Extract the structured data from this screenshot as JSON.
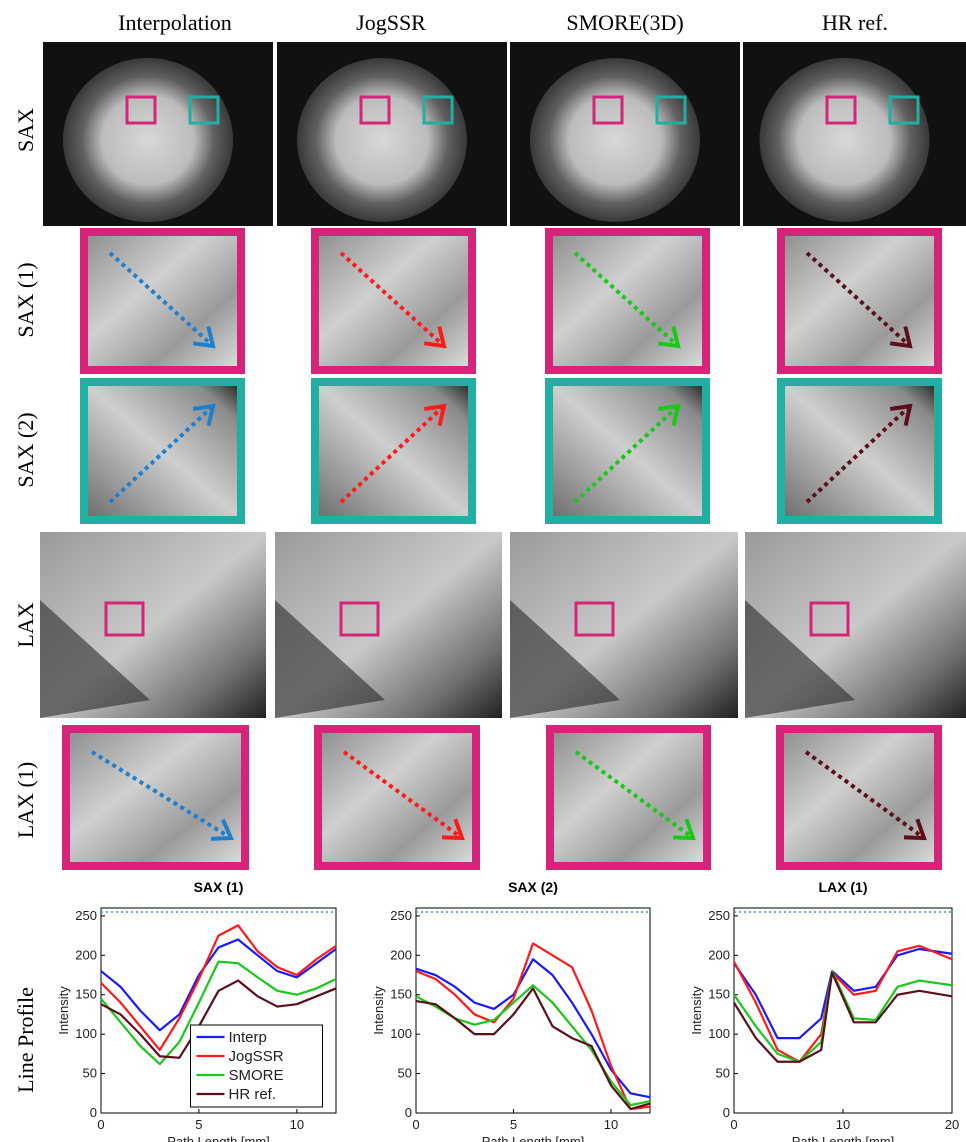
{
  "columns": [
    "Interpolation",
    "JogSSR",
    "SMORE(3D)",
    "HR ref."
  ],
  "rows": [
    "SAX",
    "SAX (1)",
    "SAX (2)",
    "LAX",
    "LAX (1)",
    "Line Profile"
  ],
  "chart_data": [
    {
      "type": "line",
      "title": "SAX (1)",
      "x_label": "Path Length [mm]",
      "y_label": "Intensity",
      "x": [
        0,
        1,
        2,
        3,
        4,
        5,
        6,
        7,
        8,
        9,
        10,
        11,
        12
      ],
      "xlim": [
        0,
        12
      ],
      "xticks": [
        0,
        5,
        10
      ],
      "ylim": [
        0,
        260
      ],
      "yticks": [
        0,
        50,
        100,
        150,
        200,
        250
      ],
      "reference_line": 255,
      "reference_color": "#4a90e2",
      "legend": "lower center",
      "series": [
        {
          "name": "Interp",
          "color": "#1a1aff",
          "values": [
            180,
            160,
            130,
            105,
            125,
            175,
            210,
            220,
            200,
            180,
            172,
            190,
            208
          ]
        },
        {
          "name": "JogSSR",
          "color": "#ff1a1a",
          "values": [
            165,
            140,
            110,
            80,
            120,
            170,
            225,
            238,
            205,
            185,
            175,
            195,
            212
          ]
        },
        {
          "name": "SMORE",
          "color": "#19c819",
          "values": [
            145,
            115,
            85,
            62,
            90,
            140,
            192,
            190,
            172,
            155,
            150,
            158,
            170
          ]
        },
        {
          "name": "HR ref.",
          "color": "#5a0f1a",
          "values": [
            138,
            125,
            100,
            72,
            70,
            110,
            155,
            168,
            148,
            135,
            138,
            148,
            158
          ]
        }
      ]
    },
    {
      "type": "line",
      "title": "SAX (2)",
      "x_label": "Path Length [mm]",
      "y_label": "Intensity",
      "x": [
        0,
        1,
        2,
        3,
        4,
        5,
        6,
        7,
        8,
        9,
        10,
        11,
        12
      ],
      "xlim": [
        0,
        12
      ],
      "xticks": [
        0,
        5,
        10
      ],
      "ylim": [
        0,
        260
      ],
      "yticks": [
        0,
        50,
        100,
        150,
        200,
        250
      ],
      "reference_line": 255,
      "reference_color": "#4a90e2",
      "series": [
        {
          "color": "#1a1aff",
          "values": [
            183,
            175,
            160,
            140,
            132,
            150,
            195,
            175,
            140,
            100,
            55,
            25,
            20
          ]
        },
        {
          "color": "#ff1a1a",
          "values": [
            180,
            170,
            150,
            125,
            115,
            145,
            215,
            200,
            185,
            130,
            60,
            5,
            8
          ]
        },
        {
          "color": "#19c819",
          "values": [
            148,
            135,
            120,
            112,
            118,
            140,
            162,
            140,
            110,
            80,
            40,
            10,
            15
          ]
        },
        {
          "color": "#5a0f1a",
          "values": [
            142,
            138,
            120,
            100,
            100,
            125,
            158,
            110,
            95,
            85,
            35,
            5,
            12
          ]
        }
      ]
    },
    {
      "type": "line",
      "title": "LAX (1)",
      "x_label": "Path Length [mm]",
      "y_label": "Intensity",
      "x": [
        0,
        2,
        4,
        6,
        8,
        9,
        11,
        13,
        15,
        17,
        20
      ],
      "xlim": [
        0,
        20
      ],
      "xticks": [
        0,
        10,
        20
      ],
      "ylim": [
        0,
        260
      ],
      "yticks": [
        0,
        50,
        100,
        150,
        200,
        250
      ],
      "reference_line": 255,
      "reference_color": "#4a90e2",
      "series": [
        {
          "color": "#1a1aff",
          "values": [
            190,
            150,
            95,
            95,
            120,
            180,
            155,
            160,
            200,
            208,
            202
          ]
        },
        {
          "color": "#ff1a1a",
          "values": [
            192,
            140,
            80,
            65,
            100,
            178,
            150,
            155,
            205,
            212,
            195
          ]
        },
        {
          "color": "#19c819",
          "values": [
            150,
            110,
            75,
            65,
            90,
            180,
            120,
            118,
            160,
            168,
            162
          ]
        },
        {
          "color": "#5a0f1a",
          "values": [
            140,
            95,
            65,
            65,
            80,
            178,
            115,
            115,
            150,
            155,
            148
          ]
        }
      ]
    }
  ]
}
